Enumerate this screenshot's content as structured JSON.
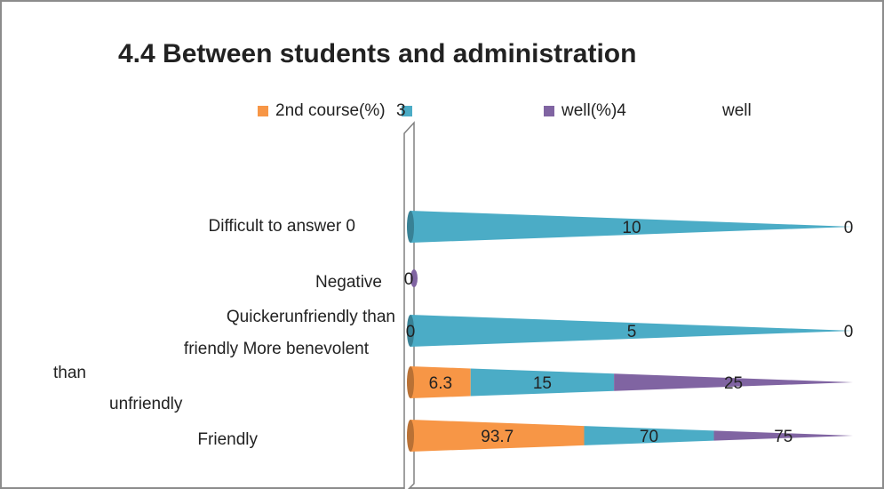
{
  "chart_data": {
    "type": "cone-bar-100",
    "title": "4.4 Between students and administration",
    "categories": [
      [
        "Difficult to answer 0"
      ],
      [
        "Negative"
      ],
      [
        "Quickerunfriendly than",
        "friendly More benevolent"
      ],
      [
        "than",
        "unfriendly"
      ],
      [
        "Friendly"
      ]
    ],
    "series": [
      {
        "name": "2nd course(%)",
        "color": "#f79646",
        "values": [
          null,
          null,
          0,
          6.3,
          93.7
        ]
      },
      {
        "name": "3",
        "color": "#4bacc6",
        "values": [
          10,
          null,
          5,
          15,
          70
        ]
      },
      {
        "name": "well(%)4",
        "color": "#8064a2",
        "values": [
          0,
          0,
          0,
          25,
          75
        ]
      },
      {
        "name": "well",
        "color": null,
        "values": [
          null,
          null,
          null,
          null,
          null
        ]
      }
    ]
  }
}
